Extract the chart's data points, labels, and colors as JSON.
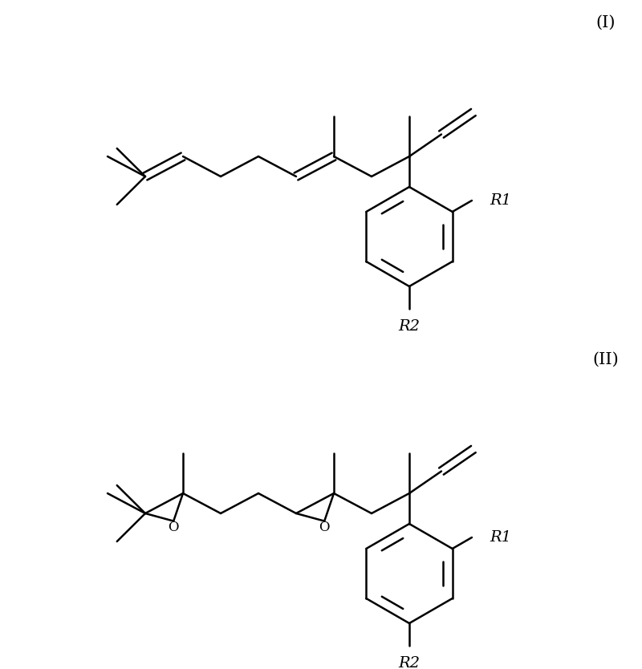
{
  "bg_color": "#ffffff",
  "line_color": "#000000",
  "lw": 1.8,
  "label_I": "(I)",
  "label_II": "(II)",
  "R1": "R1",
  "R2": "R2",
  "O": "O",
  "fs_label": 15,
  "fs_sub": 14
}
